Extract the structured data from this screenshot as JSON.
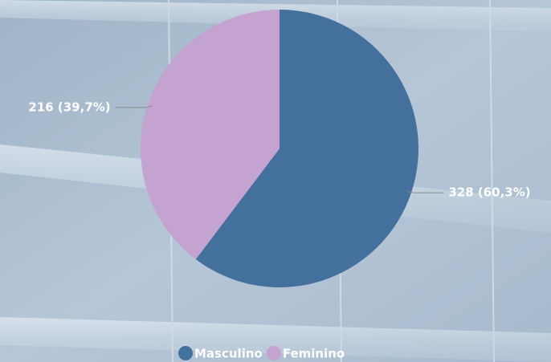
{
  "chart_data": {
    "type": "pie",
    "categories": [
      "Masculino",
      "Feminino"
    ],
    "values": [
      328,
      216
    ],
    "value_labels": [
      "328 (60,3%)",
      "216 (39,7%)"
    ],
    "colors": [
      "#44709e",
      "#c4a3d0"
    ],
    "legend": "bottom"
  }
}
